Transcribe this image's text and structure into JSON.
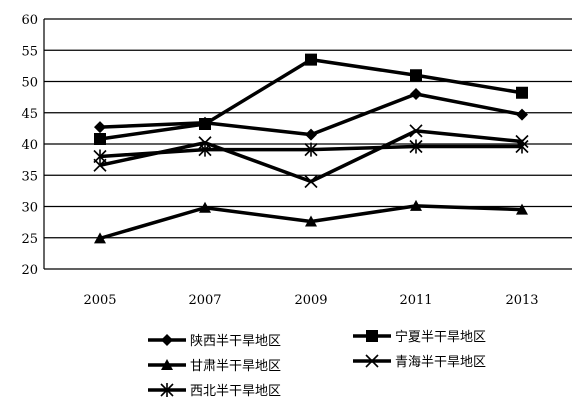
{
  "chart_data": {
    "type": "line",
    "title": "",
    "xlabel": "",
    "ylabel": "",
    "x": [
      "2005",
      "2007",
      "2009",
      "2011",
      "2013"
    ],
    "ylim": [
      20,
      60
    ],
    "yticks": [
      20,
      25,
      30,
      35,
      40,
      45,
      50,
      55,
      60
    ],
    "grid": "horizontal",
    "legend_position": "bottom",
    "series": [
      {
        "name": "陕西半干旱地区",
        "marker": "diamond",
        "values": [
          42.7,
          43.4,
          41.5,
          48.0,
          44.7
        ]
      },
      {
        "name": "宁夏半干旱地区",
        "marker": "square",
        "values": [
          40.8,
          43.2,
          53.5,
          51.0,
          48.2
        ]
      },
      {
        "name": "甘肃半干旱地区",
        "marker": "triangle",
        "values": [
          24.9,
          29.8,
          27.6,
          30.1,
          29.5
        ]
      },
      {
        "name": "青海半干旱地区",
        "marker": "x",
        "values": [
          36.6,
          40.2,
          34.0,
          42.1,
          40.4
        ]
      },
      {
        "name": "西北半干旱地区",
        "marker": "asterisk",
        "values": [
          38.0,
          39.1,
          39.1,
          39.6,
          39.6
        ]
      }
    ]
  }
}
